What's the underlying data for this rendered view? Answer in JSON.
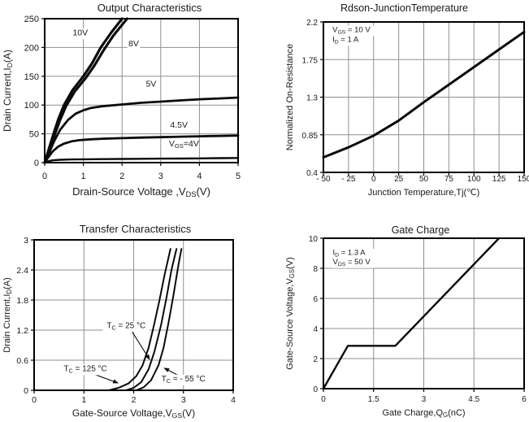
{
  "figure": {
    "background": "#ffffff"
  },
  "colors": {
    "background": "#ffffff",
    "curve": "#0a0a0a",
    "grid": "#8f8f8f",
    "border": "#000000",
    "text": "#1a1a1a"
  },
  "chart_data": [
    {
      "id": "output",
      "type": "line",
      "title": "Output Characteristics",
      "xlabel_parts": [
        {
          "t": "Drain-Source Voltage ,V"
        },
        {
          "t": "DS",
          "sub": true
        },
        {
          "t": "(V)"
        }
      ],
      "ylabel_parts": [
        {
          "t": "Drain Current,I"
        },
        {
          "t": "D",
          "sub": true
        },
        {
          "t": "(A)"
        }
      ],
      "xlim": [
        0,
        5
      ],
      "ylim": [
        0,
        250
      ],
      "xticks": {
        "values": [
          0,
          1,
          2,
          3,
          4,
          5
        ],
        "labels": [
          "0",
          "1",
          "2",
          "3",
          "4",
          "5"
        ]
      },
      "yticks": {
        "values": [
          0,
          50,
          100,
          150,
          200,
          250
        ],
        "labels": [
          "0",
          "50",
          "100",
          "150",
          "200",
          "250"
        ]
      },
      "grid": true,
      "series": [
        {
          "name": "VGS=10V",
          "stroke_width": 3.2,
          "points": [
            [
              0,
              0
            ],
            [
              0.1,
              22
            ],
            [
              0.23,
              50
            ],
            [
              0.35,
              75
            ],
            [
              0.5,
              100
            ],
            [
              0.72,
              126
            ],
            [
              1.0,
              150
            ],
            [
              1.22,
              172
            ],
            [
              1.45,
              200
            ],
            [
              1.72,
              226
            ],
            [
              2.0,
              250
            ]
          ]
        },
        {
          "name": "VGS=8V",
          "stroke_width": 3.2,
          "points": [
            [
              0,
              0
            ],
            [
              0.12,
              21
            ],
            [
              0.26,
              49
            ],
            [
              0.39,
              73
            ],
            [
              0.55,
              98
            ],
            [
              0.77,
              123
            ],
            [
              1.06,
              147
            ],
            [
              1.28,
              168
            ],
            [
              1.52,
              195
            ],
            [
              1.78,
              221
            ],
            [
              2.07,
              245
            ],
            [
              2.13,
              250
            ]
          ]
        },
        {
          "name": "VGS=5V",
          "stroke_width": 2.8,
          "points": [
            [
              0,
              0
            ],
            [
              0.1,
              15
            ],
            [
              0.25,
              38
            ],
            [
              0.4,
              57
            ],
            [
              0.6,
              74
            ],
            [
              0.8,
              85
            ],
            [
              1.0,
              91
            ],
            [
              1.2,
              95
            ],
            [
              1.5,
              98
            ],
            [
              2.0,
              101
            ],
            [
              2.5,
              104
            ],
            [
              3.0,
              106
            ],
            [
              3.5,
              108
            ],
            [
              4.0,
              110
            ],
            [
              4.5,
              111.5
            ],
            [
              5.0,
              113
            ]
          ]
        },
        {
          "name": "VGS=4.5V",
          "stroke_width": 2.8,
          "points": [
            [
              0,
              0
            ],
            [
              0.1,
              10
            ],
            [
              0.2,
              19
            ],
            [
              0.35,
              28
            ],
            [
              0.5,
              33
            ],
            [
              0.7,
              37
            ],
            [
              0.9,
              39
            ],
            [
              1.2,
              40.5
            ],
            [
              1.5,
              41.5
            ],
            [
              2.0,
              42.5
            ],
            [
              2.5,
              43.5
            ],
            [
              3.0,
              44.2
            ],
            [
              3.5,
              45
            ],
            [
              4.0,
              45.7
            ],
            [
              4.5,
              46.3
            ],
            [
              5.0,
              47
            ]
          ]
        },
        {
          "name": "VGS=4V",
          "stroke_width": 2.4,
          "points": [
            [
              0,
              0
            ],
            [
              0.1,
              2.5
            ],
            [
              0.2,
              4
            ],
            [
              0.4,
              5
            ],
            [
              0.7,
              5.5
            ],
            [
              1.0,
              5.8
            ],
            [
              1.5,
              6.1
            ],
            [
              2.0,
              6.4
            ],
            [
              2.5,
              6.6
            ],
            [
              3.0,
              6.9
            ],
            [
              3.5,
              7.1
            ],
            [
              4.0,
              7.4
            ],
            [
              4.5,
              7.7
            ],
            [
              5.0,
              8
            ]
          ]
        }
      ],
      "annotations": [
        {
          "parts": [
            {
              "t": "10V"
            }
          ],
          "x": 0.92,
          "y": 221,
          "anchor": "middle",
          "bg": true
        },
        {
          "parts": [
            {
              "t": "8V"
            }
          ],
          "x": 2.3,
          "y": 202,
          "anchor": "middle",
          "bg": true
        },
        {
          "parts": [
            {
              "t": "5V"
            }
          ],
          "x": 2.75,
          "y": 132,
          "anchor": "middle",
          "bg": true
        },
        {
          "parts": [
            {
              "t": "4.5V"
            }
          ],
          "x": 3.47,
          "y": 61,
          "anchor": "middle",
          "bg": true
        },
        {
          "parts": [
            {
              "t": "V"
            },
            {
              "t": "GS",
              "sub": true
            },
            {
              "t": "=4V"
            }
          ],
          "x": 3.6,
          "y": 28,
          "anchor": "middle",
          "bg": true
        }
      ]
    },
    {
      "id": "rdson",
      "type": "line",
      "title": "Rdson-JunctionTemperature",
      "xlabel_parts": [
        {
          "t": "Junction Temperature,Tj(℃)"
        }
      ],
      "ylabel_parts": [
        {
          "t": "Normalized On-Resistance"
        }
      ],
      "xlim": [
        -50,
        150
      ],
      "ylim": [
        0.4,
        2.2
      ],
      "xticks": {
        "values": [
          -50,
          -25,
          0,
          25,
          50,
          75,
          100,
          125,
          150
        ],
        "labels": [
          "- 50",
          "- 25",
          "0",
          "25",
          "50",
          "75",
          "100",
          "125",
          "150"
        ]
      },
      "yticks": {
        "values": [
          0.4,
          0.85,
          1.3,
          1.75,
          2.2
        ],
        "labels": [
          "0.4",
          "0.85",
          "1.3",
          "1.75",
          "2.2"
        ]
      },
      "grid": true,
      "series": [
        {
          "name": "normalized-on-resistance",
          "stroke_width": 3,
          "points": [
            [
              -50,
              0.58
            ],
            [
              -25,
              0.7
            ],
            [
              0,
              0.84
            ],
            [
              25,
              1.02
            ],
            [
              50,
              1.24
            ],
            [
              75,
              1.45
            ],
            [
              100,
              1.66
            ],
            [
              125,
              1.87
            ],
            [
              150,
              2.08
            ]
          ]
        }
      ],
      "annotations": [
        {
          "parts": [
            {
              "t": "V"
            },
            {
              "t": "GS",
              "sub": true
            },
            {
              "t": " = 10 V"
            }
          ],
          "x": -41,
          "y": 2.08,
          "anchor": "start",
          "bg": true
        },
        {
          "parts": [
            {
              "t": "I"
            },
            {
              "t": "D",
              "sub": true
            },
            {
              "t": " = 1 A"
            }
          ],
          "x": -41,
          "y": 1.96,
          "anchor": "start",
          "bg": true
        }
      ]
    },
    {
      "id": "transfer",
      "type": "line",
      "title": "Transfer Characteristics",
      "xlabel_parts": [
        {
          "t": "Gate-Source Voltage,V"
        },
        {
          "t": "GS",
          "sub": true
        },
        {
          "t": "(V)"
        }
      ],
      "ylabel_parts": [
        {
          "t": "Drain Current,I"
        },
        {
          "t": "D",
          "sub": true
        },
        {
          "t": "(A)"
        }
      ],
      "xlim": [
        0,
        4
      ],
      "ylim": [
        0,
        3
      ],
      "xticks": {
        "values": [
          0,
          1,
          2,
          3,
          4
        ],
        "labels": [
          "0",
          "1",
          "2",
          "3",
          "4"
        ]
      },
      "yticks": {
        "values": [
          0,
          0.6,
          1.2,
          1.8,
          2.4,
          3
        ],
        "labels": [
          "0",
          "0.6",
          "1.2",
          "1.8",
          "2.4",
          "3"
        ]
      },
      "grid": true,
      "series": [
        {
          "name": "TC=125C",
          "stroke_width": 2,
          "points": [
            [
              1.5,
              0
            ],
            [
              1.7,
              0.05
            ],
            [
              1.9,
              0.14
            ],
            [
              2.05,
              0.28
            ],
            [
              2.18,
              0.5
            ],
            [
              2.3,
              0.85
            ],
            [
              2.42,
              1.35
            ],
            [
              2.52,
              1.8
            ],
            [
              2.62,
              2.3
            ],
            [
              2.7,
              2.65
            ],
            [
              2.74,
              2.82
            ]
          ]
        },
        {
          "name": "TC=25C",
          "stroke_width": 2,
          "points": [
            [
              1.85,
              0
            ],
            [
              2.0,
              0.05
            ],
            [
              2.15,
              0.16
            ],
            [
              2.3,
              0.42
            ],
            [
              2.42,
              0.78
            ],
            [
              2.55,
              1.3
            ],
            [
              2.66,
              1.85
            ],
            [
              2.76,
              2.4
            ],
            [
              2.86,
              2.82
            ]
          ]
        },
        {
          "name": "TC=-55C",
          "stroke_width": 2,
          "points": [
            [
              2.05,
              0
            ],
            [
              2.2,
              0.06
            ],
            [
              2.35,
              0.2
            ],
            [
              2.5,
              0.5
            ],
            [
              2.6,
              0.85
            ],
            [
              2.7,
              1.35
            ],
            [
              2.8,
              1.9
            ],
            [
              2.9,
              2.5
            ],
            [
              2.96,
              2.82
            ]
          ]
        }
      ],
      "annotations": [
        {
          "parts": [
            {
              "t": "T"
            },
            {
              "t": "C",
              "sub": true
            },
            {
              "t": " = 25 °C"
            }
          ],
          "x": 1.85,
          "y": 1.24,
          "anchor": "middle",
          "bg": true,
          "arrow": [
            1.96,
            1.18,
            2.33,
            0.6
          ]
        },
        {
          "parts": [
            {
              "t": "T"
            },
            {
              "t": "C",
              "sub": true
            },
            {
              "t": " = 125 °C"
            }
          ],
          "x": 1.03,
          "y": 0.38,
          "anchor": "middle",
          "bg": true,
          "arrow": [
            1.15,
            0.34,
            1.7,
            0.14
          ]
        },
        {
          "parts": [
            {
              "t": "T"
            },
            {
              "t": "C",
              "sub": true
            },
            {
              "t": " = - 55 °C"
            }
          ],
          "x": 3.0,
          "y": 0.18,
          "anchor": "middle",
          "bg": true,
          "arrow": [
            2.93,
            0.28,
            2.6,
            0.45
          ]
        }
      ]
    },
    {
      "id": "gate",
      "type": "line",
      "title": "Gate Charge",
      "xlabel_parts": [
        {
          "t": "Gate Charge,Q"
        },
        {
          "t": "G",
          "sub": true
        },
        {
          "t": "(nC)"
        }
      ],
      "ylabel_parts": [
        {
          "t": "Gate-Source Voltage,V"
        },
        {
          "t": "GS",
          "sub": true
        },
        {
          "t": "(V)"
        }
      ],
      "xlim": [
        0,
        6
      ],
      "ylim": [
        0,
        10
      ],
      "xticks": {
        "values": [
          0,
          1.5,
          3,
          4.5,
          6
        ],
        "labels": [
          "0",
          "1.5",
          "3",
          "4.5",
          "6"
        ]
      },
      "yticks": {
        "values": [
          0,
          2,
          4,
          6,
          8,
          10
        ],
        "labels": [
          "0",
          "2",
          "4",
          "6",
          "8",
          "10"
        ]
      },
      "grid": true,
      "series": [
        {
          "name": "gate-charge",
          "stroke_width": 2.4,
          "points": [
            [
              0,
              0
            ],
            [
              0.73,
              2.85
            ],
            [
              2.15,
              2.85
            ],
            [
              5.25,
              10
            ]
          ]
        }
      ],
      "annotations": [
        {
          "parts": [
            {
              "t": "I"
            },
            {
              "t": "D",
              "sub": true
            },
            {
              "t": " = 1.3 A"
            }
          ],
          "x": 0.28,
          "y": 8.88,
          "anchor": "start",
          "bg": true
        },
        {
          "parts": [
            {
              "t": "V"
            },
            {
              "t": "DS",
              "sub": true
            },
            {
              "t": " = 50 V"
            }
          ],
          "x": 0.28,
          "y": 8.27,
          "anchor": "start",
          "bg": true
        }
      ]
    }
  ]
}
